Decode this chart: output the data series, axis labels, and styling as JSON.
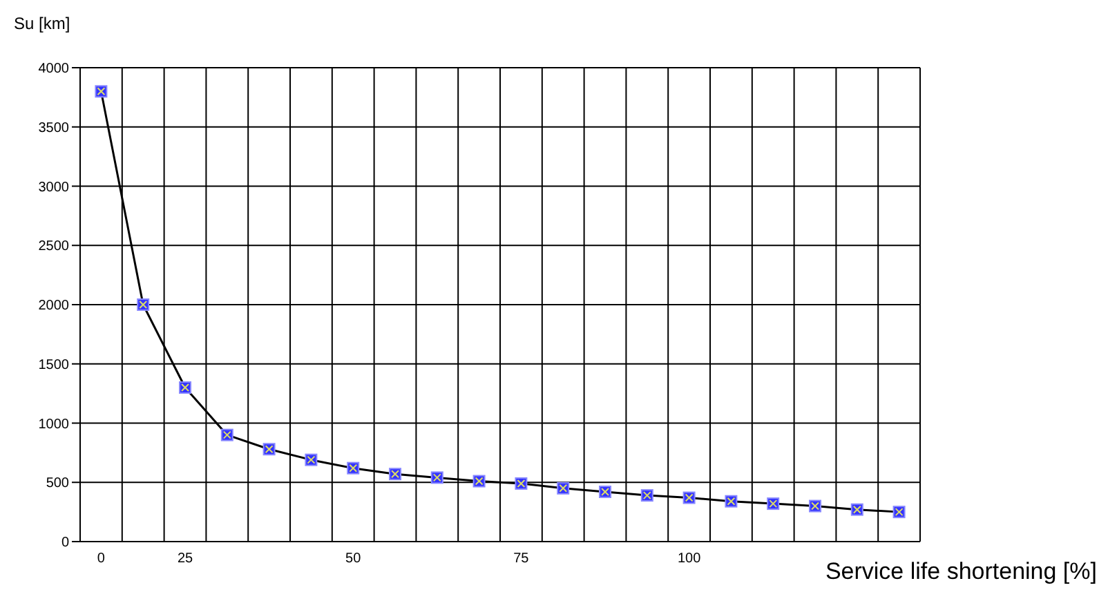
{
  "chart_data": {
    "type": "line",
    "ylabel": "Su [km]",
    "xlabel": "Service life shortening [%]",
    "categories": [
      "0",
      null,
      "25",
      null,
      null,
      null,
      "50",
      null,
      null,
      null,
      "75",
      null,
      null,
      null,
      "100",
      null,
      null,
      null,
      null,
      null
    ],
    "series": [
      {
        "color": "#3333ff",
        "values": [
          3800,
          2000,
          1300,
          900,
          780,
          690,
          620,
          570,
          540,
          510,
          490,
          450,
          420,
          390,
          370,
          340,
          320,
          300,
          270,
          250
        ]
      }
    ],
    "ylim": [
      0,
      4000
    ],
    "yticks": [
      0,
      500,
      1000,
      1500,
      2000,
      2500,
      3000,
      3500,
      4000
    ],
    "grid": true,
    "marker": "square",
    "line_style": "solid"
  }
}
